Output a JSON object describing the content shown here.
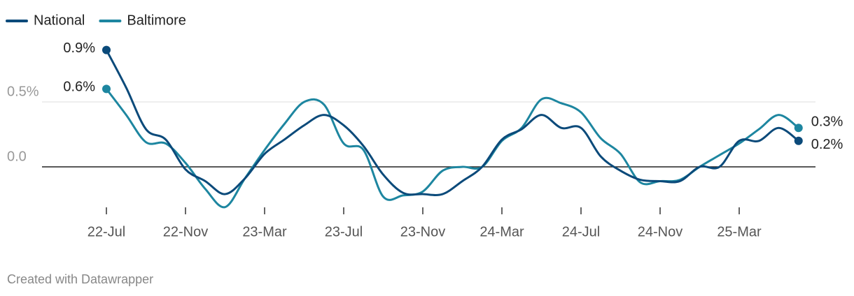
{
  "chart_data": {
    "type": "line",
    "categories": [
      "22-Jul",
      null,
      null,
      null,
      "22-Nov",
      null,
      null,
      null,
      "23-Mar",
      null,
      null,
      null,
      "23-Jul",
      null,
      null,
      null,
      "23-Nov",
      null,
      null,
      null,
      "24-Mar",
      null,
      null,
      null,
      "24-Jul",
      null,
      null,
      null,
      "24-Nov",
      null,
      null,
      null,
      "25-Mar",
      null,
      null,
      null
    ],
    "series": [
      {
        "name": "National",
        "color": "#0b4a7a",
        "values": [
          0.9,
          0.61,
          0.29,
          0.21,
          -0.02,
          -0.11,
          -0.21,
          -0.09,
          0.1,
          0.21,
          0.32,
          0.4,
          0.32,
          0.16,
          -0.06,
          -0.2,
          -0.21,
          -0.21,
          -0.11,
          0.0,
          0.21,
          0.29,
          0.4,
          0.3,
          0.3,
          0.08,
          -0.03,
          -0.1,
          -0.11,
          -0.11,
          0.0,
          0.0,
          0.2,
          0.2,
          0.3,
          0.2
        ],
        "value_labels": [
          "0.9%",
          null,
          null,
          null,
          null,
          null,
          null,
          null,
          null,
          null,
          null,
          null,
          null,
          null,
          null,
          null,
          null,
          null,
          null,
          null,
          null,
          null,
          null,
          null,
          null,
          null,
          null,
          null,
          null,
          null,
          null,
          null,
          null,
          null,
          null,
          "0.2%"
        ]
      },
      {
        "name": "Baltimore",
        "color": "#1d86a0",
        "values": [
          0.6,
          0.4,
          0.19,
          0.18,
          0.03,
          -0.17,
          -0.31,
          -0.09,
          0.13,
          0.33,
          0.5,
          0.48,
          0.18,
          0.13,
          -0.23,
          -0.22,
          -0.19,
          -0.03,
          0.0,
          0.0,
          0.2,
          0.3,
          0.52,
          0.49,
          0.42,
          0.22,
          0.1,
          -0.12,
          -0.11,
          -0.1,
          0.0,
          0.09,
          0.18,
          0.29,
          0.4,
          0.3
        ],
        "value_labels": [
          "0.6%",
          null,
          null,
          null,
          null,
          null,
          null,
          null,
          null,
          null,
          null,
          null,
          null,
          null,
          null,
          null,
          null,
          null,
          null,
          null,
          null,
          null,
          null,
          null,
          null,
          null,
          null,
          null,
          null,
          null,
          null,
          null,
          null,
          null,
          null,
          "0.3%"
        ]
      }
    ],
    "ylim": [
      -0.3,
      1.0
    ],
    "yticks": [
      {
        "value": 0,
        "label": "0.0"
      },
      {
        "value": 0.5,
        "label": "0.5%"
      }
    ],
    "grid": true,
    "legend": "top-left",
    "footer": "Created with Datawrapper"
  }
}
